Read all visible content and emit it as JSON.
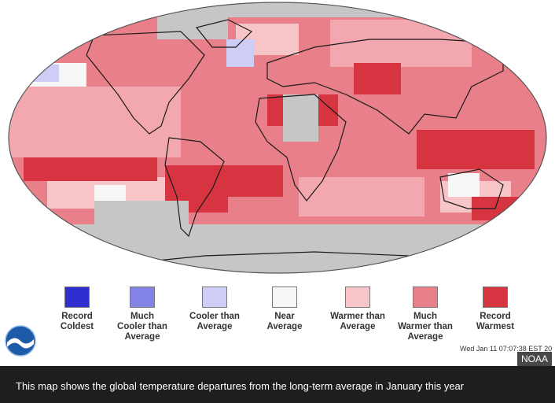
{
  "map": {
    "colors": {
      "ocean_outside": "#ffffff",
      "no_data": "#c6c6c6",
      "land_outline": "#1a1a1a"
    }
  },
  "legend": [
    {
      "label": "Record\nColdest",
      "color": "#2f2fd0"
    },
    {
      "label": "Much\nCooler than\nAverage",
      "color": "#8484e6"
    },
    {
      "label": "Cooler than\nAverage",
      "color": "#cdcdf5"
    },
    {
      "label": "Near\nAverage",
      "color": "#f7f7f7"
    },
    {
      "label": "Warmer than\nAverage",
      "color": "#f7c4c8"
    },
    {
      "label": "Much\nWarmer than\nAverage",
      "color": "#e98089"
    },
    {
      "label": "Record\nWarmest",
      "color": "#d63441"
    }
  ],
  "timestamp": "Wed Jan 11 07:07:38 EST 20",
  "credit": "NOAA",
  "caption": "This map shows the global temperature departures from the long-term average in January this year"
}
